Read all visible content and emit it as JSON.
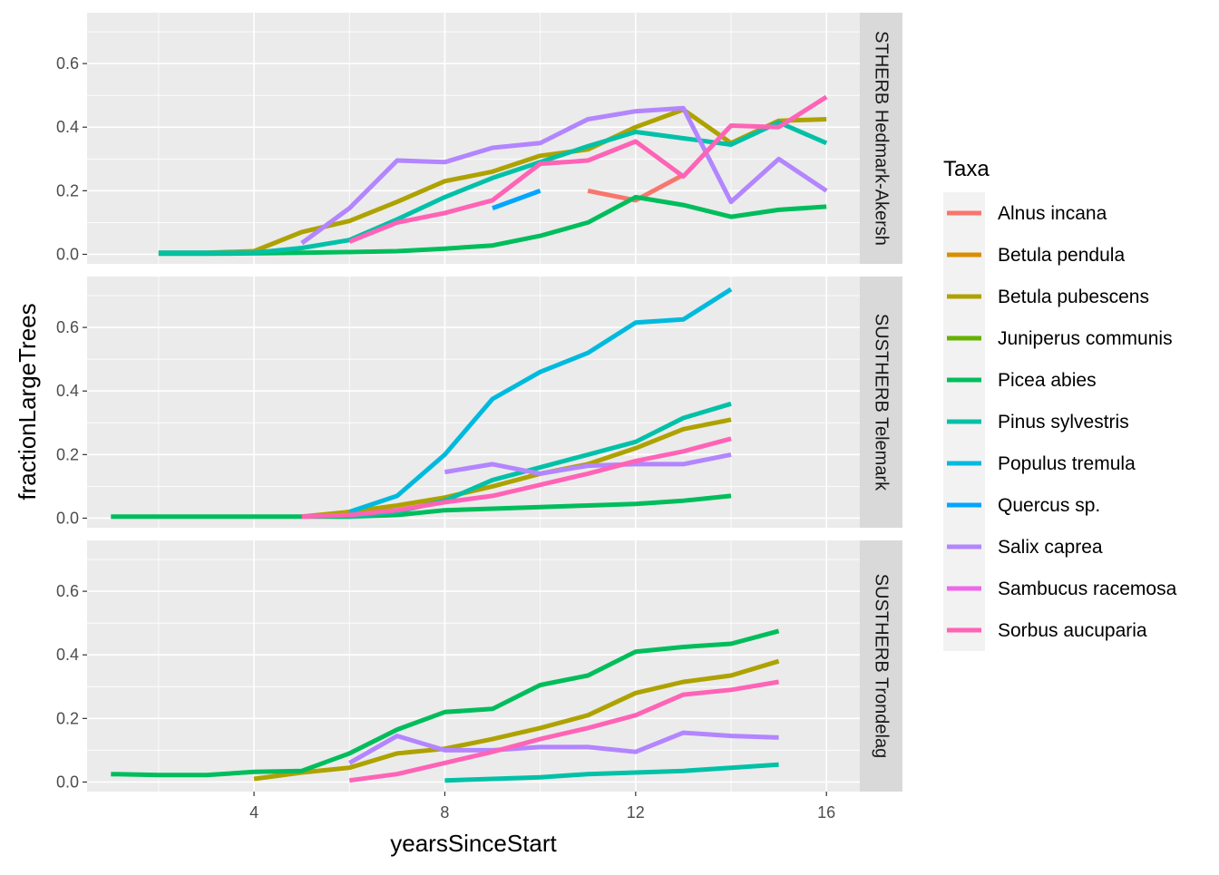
{
  "chart_data": {
    "type": "line",
    "xlabel": "yearsSinceStart",
    "ylabel": "fractionLargeTrees",
    "xlim": [
      0.5,
      16.7
    ],
    "ylim": [
      -0.03,
      0.76
    ],
    "x_ticks": [
      4,
      8,
      12,
      16
    ],
    "y_ticks": [
      0.0,
      0.2,
      0.4,
      0.6
    ],
    "y_tick_labels": [
      "0.0",
      "0.2",
      "0.4",
      "0.6"
    ],
    "legend": {
      "title": "Taxa",
      "position": "right",
      "entries": [
        {
          "name": "Alnus incana",
          "color": "#F8766D"
        },
        {
          "name": "Betula pendula",
          "color": "#DB8E00"
        },
        {
          "name": "Betula pubescens",
          "color": "#AEA200"
        },
        {
          "name": "Juniperus communis",
          "color": "#64B200"
        },
        {
          "name": "Picea abies",
          "color": "#00BD5C"
        },
        {
          "name": "Pinus sylvestris",
          "color": "#00C1A7"
        },
        {
          "name": "Populus tremula",
          "color": "#00BADE"
        },
        {
          "name": "Quercus sp.",
          "color": "#00A6FF"
        },
        {
          "name": "Salix caprea",
          "color": "#B385FF"
        },
        {
          "name": "Sambucus racemosa",
          "color": "#EF67EB"
        },
        {
          "name": "Sorbus aucuparia",
          "color": "#FF63B6"
        }
      ]
    },
    "panels": [
      {
        "strip": "SUSTHERB Hedmark-Akershus",
        "strip_visible": "STHERB Hedmark-Akersh",
        "series": [
          {
            "name": "Alnus incana",
            "color": "#F8766D",
            "x": [
              11,
              12,
              13
            ],
            "y": [
              0.2,
              0.17,
              0.25
            ]
          },
          {
            "name": "Betula pubescens",
            "color": "#AEA200",
            "x": [
              2,
              3,
              4,
              5,
              6,
              7,
              8,
              9,
              10,
              11,
              12,
              13,
              14,
              15,
              16
            ],
            "y": [
              0.005,
              0.005,
              0.01,
              0.07,
              0.105,
              0.165,
              0.23,
              0.26,
              0.31,
              0.33,
              0.4,
              0.455,
              0.35,
              0.42,
              0.425
            ]
          },
          {
            "name": "Picea abies",
            "color": "#00BD5C",
            "x": [
              2,
              3,
              4,
              5,
              6,
              7,
              8,
              9,
              10,
              11,
              12,
              13,
              14,
              15,
              16
            ],
            "y": [
              0.002,
              0.002,
              0.003,
              0.005,
              0.007,
              0.01,
              0.018,
              0.028,
              0.058,
              0.1,
              0.18,
              0.155,
              0.118,
              0.14,
              0.15
            ]
          },
          {
            "name": "Pinus sylvestris",
            "color": "#00C1A7",
            "x": [
              2,
              3,
              4,
              5,
              6,
              7,
              8,
              9,
              10,
              11,
              12,
              13,
              14,
              15,
              16
            ],
            "y": [
              0.005,
              0.005,
              0.005,
              0.02,
              0.045,
              0.11,
              0.18,
              0.24,
              0.29,
              0.34,
              0.385,
              0.365,
              0.345,
              0.415,
              0.35
            ]
          },
          {
            "name": "Quercus sp.",
            "color": "#00A6FF",
            "x": [
              9,
              10
            ],
            "y": [
              0.145,
              0.2
            ]
          },
          {
            "name": "Salix caprea",
            "color": "#B385FF",
            "x": [
              5,
              6,
              7,
              8,
              9,
              10,
              11,
              12,
              13,
              14,
              15,
              16
            ],
            "y": [
              0.035,
              0.145,
              0.295,
              0.29,
              0.335,
              0.35,
              0.425,
              0.45,
              0.46,
              0.165,
              0.3,
              0.2
            ]
          },
          {
            "name": "Sorbus aucuparia",
            "color": "#FF63B6",
            "x": [
              6,
              7,
              8,
              9,
              10,
              11,
              12,
              13,
              14,
              15,
              16
            ],
            "y": [
              0.04,
              0.1,
              0.13,
              0.17,
              0.285,
              0.295,
              0.355,
              0.245,
              0.405,
              0.4,
              0.495
            ]
          }
        ]
      },
      {
        "strip": "SUSTHERB Telemark",
        "strip_visible": "SUSTHERB Telemark",
        "series": [
          {
            "name": "Betula pubescens",
            "color": "#AEA200",
            "x": [
              5,
              6,
              7,
              8,
              9,
              10,
              11,
              12,
              13,
              14
            ],
            "y": [
              0.005,
              0.02,
              0.04,
              0.065,
              0.1,
              0.14,
              0.17,
              0.22,
              0.28,
              0.31
            ]
          },
          {
            "name": "Picea abies",
            "color": "#00BD5C",
            "x": [
              1,
              2,
              3,
              4,
              5,
              6,
              7,
              8,
              9,
              10,
              11,
              12,
              13,
              14
            ],
            "y": [
              0.005,
              0.005,
              0.005,
              0.005,
              0.005,
              0.005,
              0.01,
              0.025,
              0.03,
              0.035,
              0.04,
              0.045,
              0.055,
              0.07
            ]
          },
          {
            "name": "Pinus sylvestris",
            "color": "#00C1A7",
            "x": [
              6,
              7,
              8,
              9,
              10,
              11,
              12,
              13,
              14
            ],
            "y": [
              0.005,
              0.02,
              0.055,
              0.12,
              0.16,
              0.2,
              0.24,
              0.315,
              0.36
            ]
          },
          {
            "name": "Populus tremula",
            "color": "#00BADE",
            "x": [
              6,
              7,
              8,
              9,
              10,
              11,
              12,
              13,
              14
            ],
            "y": [
              0.02,
              0.07,
              0.2,
              0.375,
              0.46,
              0.52,
              0.615,
              0.625,
              0.72
            ]
          },
          {
            "name": "Salix caprea",
            "color": "#B385FF",
            "x": [
              8,
              9,
              10,
              11,
              12,
              13,
              14
            ],
            "y": [
              0.145,
              0.17,
              0.14,
              0.165,
              0.17,
              0.17,
              0.2
            ]
          },
          {
            "name": "Sorbus aucuparia",
            "color": "#FF63B6",
            "x": [
              5,
              6,
              7,
              8,
              9,
              10,
              11,
              12,
              13,
              14
            ],
            "y": [
              0.005,
              0.01,
              0.025,
              0.05,
              0.07,
              0.105,
              0.14,
              0.18,
              0.21,
              0.25
            ]
          }
        ]
      },
      {
        "strip": "SUSTHERB Trondelag",
        "strip_visible": "SUSTHERB Trondelag",
        "series": [
          {
            "name": "Betula pubescens",
            "color": "#AEA200",
            "x": [
              4,
              5,
              6,
              7,
              8,
              9,
              10,
              11,
              12,
              13,
              14,
              15
            ],
            "y": [
              0.01,
              0.03,
              0.045,
              0.09,
              0.105,
              0.135,
              0.17,
              0.21,
              0.28,
              0.315,
              0.335,
              0.38
            ]
          },
          {
            "name": "Picea abies",
            "color": "#00BD5C",
            "x": [
              1,
              2,
              3,
              4,
              5,
              6,
              7,
              8,
              9,
              10,
              11,
              12,
              13,
              14,
              15
            ],
            "y": [
              0.025,
              0.022,
              0.022,
              0.032,
              0.035,
              0.09,
              0.165,
              0.22,
              0.23,
              0.305,
              0.335,
              0.41,
              0.425,
              0.435,
              0.475
            ]
          },
          {
            "name": "Pinus sylvestris",
            "color": "#00C1A7",
            "x": [
              8,
              9,
              10,
              11,
              12,
              13,
              14,
              15
            ],
            "y": [
              0.005,
              0.01,
              0.015,
              0.025,
              0.03,
              0.035,
              0.045,
              0.055
            ]
          },
          {
            "name": "Salix caprea",
            "color": "#B385FF",
            "x": [
              6,
              7,
              8,
              9,
              10,
              11,
              12,
              13,
              14,
              15
            ],
            "y": [
              0.06,
              0.145,
              0.1,
              0.1,
              0.11,
              0.11,
              0.095,
              0.155,
              0.145,
              0.14
            ]
          },
          {
            "name": "Sorbus aucuparia",
            "color": "#FF63B6",
            "x": [
              6,
              7,
              8,
              9,
              10,
              11,
              12,
              13,
              14,
              15
            ],
            "y": [
              0.005,
              0.025,
              0.06,
              0.095,
              0.135,
              0.17,
              0.21,
              0.275,
              0.29,
              0.315
            ]
          }
        ]
      }
    ]
  }
}
